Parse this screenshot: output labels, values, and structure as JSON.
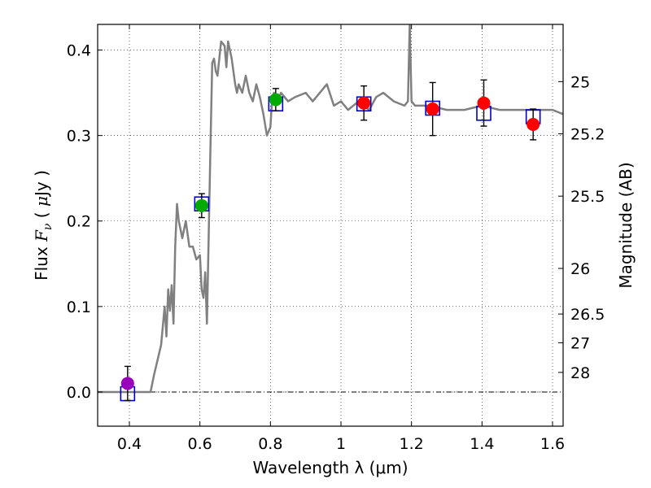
{
  "chart_data": {
    "type": "scatter",
    "title": "",
    "xlabel": "Wavelength  λ (μm)",
    "ylabel_parts": {
      "prefix": "Flux  ",
      "var": "F",
      "sub": "ν",
      "unit_open": "  ( ",
      "mu": "μ",
      "unit_rest": "Jy )"
    },
    "y2label": "Magnitude (AB)",
    "xlim": [
      0.31,
      1.63
    ],
    "ylim": [
      -0.04,
      0.43
    ],
    "xticks": [
      0.4,
      0.6,
      0.8,
      1.0,
      1.2,
      1.4,
      1.6
    ],
    "xtick_labels": [
      "0.4",
      "0.6",
      "0.8",
      "1",
      "1.2",
      "1.4",
      "1.6"
    ],
    "yticks": [
      0.0,
      0.1,
      0.2,
      0.3,
      0.4
    ],
    "ytick_labels": [
      "0.0",
      "0.1",
      "0.2",
      "0.3",
      "0.4"
    ],
    "mag_ticks": [
      25,
      25.2,
      25.5,
      26,
      26.5,
      27,
      28
    ],
    "mag_tick_labels": [
      "25",
      "25.2",
      "25.5",
      "26",
      "26.5",
      "27",
      "28"
    ],
    "grid": true,
    "zero_line": true,
    "sed_model": {
      "name": "model spectrum",
      "color": "#808080",
      "x": [
        0.31,
        0.46,
        0.47,
        0.49,
        0.5,
        0.505,
        0.51,
        0.515,
        0.52,
        0.525,
        0.53,
        0.535,
        0.54,
        0.55,
        0.56,
        0.57,
        0.58,
        0.59,
        0.6,
        0.605,
        0.61,
        0.615,
        0.62,
        0.63,
        0.635,
        0.64,
        0.645,
        0.65,
        0.66,
        0.67,
        0.675,
        0.68,
        0.69,
        0.7,
        0.705,
        0.71,
        0.72,
        0.73,
        0.74,
        0.75,
        0.76,
        0.77,
        0.78,
        0.79,
        0.8,
        0.805,
        0.81,
        0.82,
        0.83,
        0.85,
        0.87,
        0.9,
        0.92,
        0.94,
        0.96,
        0.98,
        1.0,
        1.02,
        1.05,
        1.08,
        1.1,
        1.12,
        1.15,
        1.18,
        1.19,
        1.195,
        1.2,
        1.21,
        1.25,
        1.3,
        1.35,
        1.4,
        1.45,
        1.5,
        1.55,
        1.6,
        1.63
      ],
      "y": [
        0.0,
        0.0,
        0.02,
        0.055,
        0.1,
        0.065,
        0.12,
        0.095,
        0.125,
        0.08,
        0.17,
        0.22,
        0.2,
        0.18,
        0.2,
        0.17,
        0.17,
        0.155,
        0.16,
        0.12,
        0.11,
        0.14,
        0.08,
        0.29,
        0.385,
        0.39,
        0.375,
        0.37,
        0.41,
        0.405,
        0.38,
        0.41,
        0.39,
        0.36,
        0.35,
        0.36,
        0.35,
        0.37,
        0.35,
        0.34,
        0.36,
        0.345,
        0.325,
        0.3,
        0.31,
        0.345,
        0.35,
        0.34,
        0.35,
        0.34,
        0.345,
        0.35,
        0.34,
        0.35,
        0.36,
        0.335,
        0.34,
        0.33,
        0.34,
        0.33,
        0.345,
        0.35,
        0.34,
        0.335,
        0.34,
        0.43,
        0.34,
        0.335,
        0.335,
        0.33,
        0.33,
        0.335,
        0.33,
        0.33,
        0.33,
        0.33,
        0.325
      ]
    },
    "model_photometry": {
      "name": "model bandpass flux",
      "color": "#0000cc",
      "x": [
        0.395,
        0.605,
        0.815,
        1.065,
        1.26,
        1.405,
        1.545
      ],
      "y": [
        -0.002,
        0.22,
        0.337,
        0.337,
        0.332,
        0.326,
        0.322
      ]
    },
    "observations": [
      {
        "x": 0.395,
        "y": 0.01,
        "err": 0.02,
        "color": "#9900bb"
      },
      {
        "x": 0.605,
        "y": 0.218,
        "err": 0.014,
        "color": "#00aa00"
      },
      {
        "x": 0.815,
        "y": 0.342,
        "err": 0.013,
        "color": "#00aa00"
      },
      {
        "x": 1.065,
        "y": 0.338,
        "err": 0.02,
        "color": "#ff0000"
      },
      {
        "x": 1.26,
        "y": 0.331,
        "err": 0.031,
        "color": "#ff0000"
      },
      {
        "x": 1.405,
        "y": 0.338,
        "err": 0.027,
        "color": "#ff0000"
      },
      {
        "x": 1.545,
        "y": 0.313,
        "err": 0.018,
        "color": "#ff0000"
      }
    ]
  }
}
